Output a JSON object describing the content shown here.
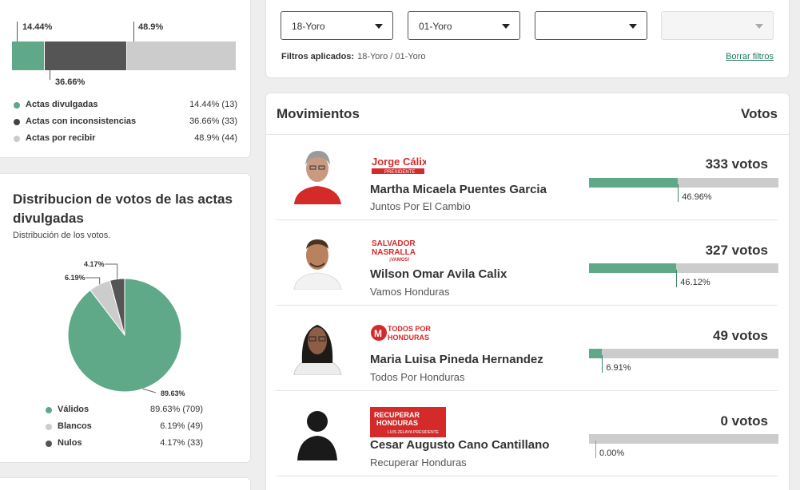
{
  "actas": {
    "segments": [
      {
        "label": "14.44%",
        "pct": 14.44,
        "color": "#5fa888"
      },
      {
        "label": "36.66%",
        "pct": 36.66,
        "color": "#555555"
      },
      {
        "label": "48.9%",
        "pct": 48.9,
        "color": "#cccccc"
      }
    ],
    "legend": [
      {
        "label": "Actas divulgadas",
        "value": "14.44% (13)",
        "color": "#5fa888"
      },
      {
        "label": "Actas con inconsistencias",
        "value": "36.66% (33)",
        "color": "#444444"
      },
      {
        "label": "Actas por recibir",
        "value": "48.9% (44)",
        "color": "#cccccc"
      }
    ]
  },
  "distribucion": {
    "title": "Distribucion de votos de las actas divulgadas",
    "subtitle": "Distribución de los votos.",
    "slices": [
      {
        "label": "89.63%",
        "pct": 89.63,
        "color": "#5fa888"
      },
      {
        "label": "6.19%",
        "pct": 6.19,
        "color": "#cccccc"
      },
      {
        "label": "4.17%",
        "pct": 4.17,
        "color": "#555555"
      }
    ],
    "legend": [
      {
        "label": "Válidos",
        "value": "89.63% (709)",
        "color": "#5fa888"
      },
      {
        "label": "Blancos",
        "value": "6.19% (49)",
        "color": "#cccccc"
      },
      {
        "label": "Nulos",
        "value": "4.17% (33)",
        "color": "#555555"
      }
    ]
  },
  "filters": {
    "selects": [
      {
        "value": "18-Yoro",
        "disabled": false
      },
      {
        "value": "01-Yoro",
        "disabled": false
      },
      {
        "value": "",
        "disabled": false
      },
      {
        "value": "",
        "disabled": true
      }
    ],
    "applied_label": "Filtros aplicados:",
    "applied_value": "18-Yoro / 01-Yoro",
    "clear_label": "Borrar filtros"
  },
  "movimientos": {
    "header": "Movimientos",
    "votes_header": "Votos",
    "candidates": [
      {
        "name": "Martha Micaela Puentes Garcia",
        "party": "Juntos Por El Cambio",
        "votes": "333 votos",
        "pct": 46.96,
        "pct_label": "46.96%",
        "logo_text": "Jorge Cálix",
        "logo_sub": "PRESIDENTE"
      },
      {
        "name": "Wilson Omar Avila Calix",
        "party": "Vamos Honduras",
        "votes": "327 votos",
        "pct": 46.12,
        "pct_label": "46.12%",
        "logo_text": "SALVADOR NASRALLA",
        "logo_sub": "¡VAMOS!"
      },
      {
        "name": "Maria Luisa Pineda Hernandez",
        "party": "Todos Por Honduras",
        "votes": "49 votos",
        "pct": 6.91,
        "pct_label": "6.91%",
        "logo_text": "TODOS POR HONDURAS",
        "logo_sub": "M"
      },
      {
        "name": "Cesar Augusto Cano Cantillano",
        "party": "Recuperar Honduras",
        "votes": "0 votos",
        "pct": 0,
        "pct_label": "0.00%",
        "logo_text": "RECUPERAR HONDURAS",
        "logo_sub": "LUIS ZELAYA PRESIDENTE"
      }
    ]
  }
}
